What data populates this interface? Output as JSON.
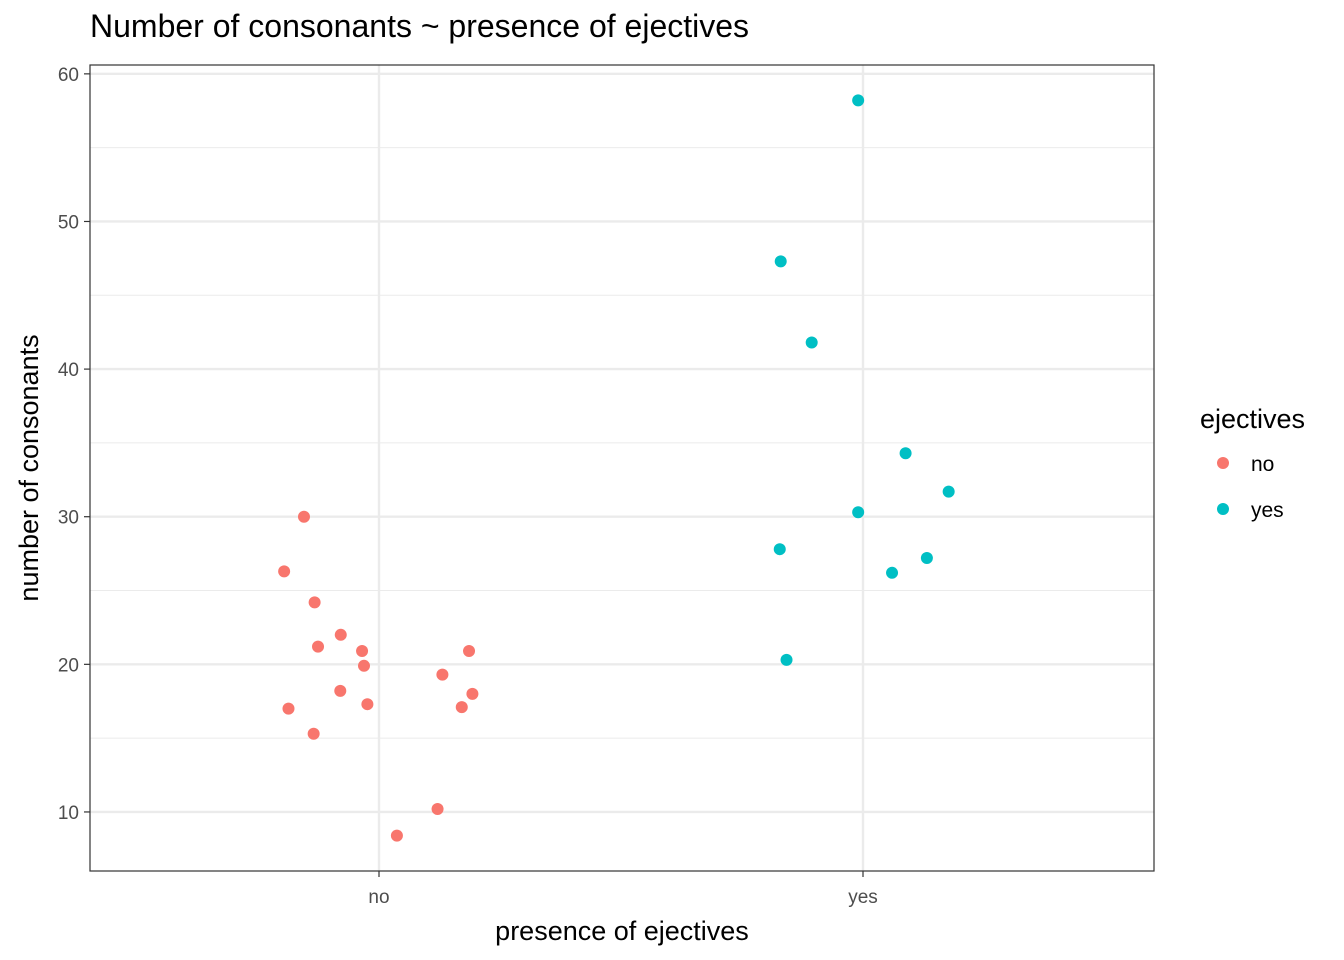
{
  "chart_data": {
    "type": "scatter",
    "title": "Number of consonants ~ presence of ejectives",
    "xlabel": "presence of ejectives",
    "ylabel": "number of consonants",
    "categories": [
      "no",
      "yes"
    ],
    "ylim": [
      6,
      60.6
    ],
    "yticks": [
      10,
      20,
      30,
      40,
      50,
      60
    ],
    "grid": true,
    "jittered": true,
    "legend": {
      "title": "ejectives",
      "position": "right",
      "entries": [
        {
          "label": "no",
          "color": "#F8766D"
        },
        {
          "label": "yes",
          "color": "#00BFC4"
        }
      ]
    },
    "series": [
      {
        "name": "no",
        "color": "#F8766D",
        "points": [
          {
            "x": "no",
            "jitter": -0.155,
            "y": 30
          },
          {
            "x": "no",
            "jitter": -0.196,
            "y": 26.3
          },
          {
            "x": "no",
            "jitter": -0.133,
            "y": 24.2
          },
          {
            "x": "no",
            "jitter": -0.079,
            "y": 22
          },
          {
            "x": "no",
            "jitter": -0.126,
            "y": 21.2
          },
          {
            "x": "no",
            "jitter": -0.035,
            "y": 20.9
          },
          {
            "x": "no",
            "jitter": -0.031,
            "y": 19.9
          },
          {
            "x": "no",
            "jitter": -0.08,
            "y": 18.2
          },
          {
            "x": "no",
            "jitter": -0.024,
            "y": 17.3
          },
          {
            "x": "no",
            "jitter": -0.187,
            "y": 17
          },
          {
            "x": "no",
            "jitter": -0.135,
            "y": 15.3
          },
          {
            "x": "no",
            "jitter": 0.037,
            "y": 8.4
          },
          {
            "x": "no",
            "jitter": 0.121,
            "y": 10.2
          },
          {
            "x": "no",
            "jitter": 0.131,
            "y": 19.3
          },
          {
            "x": "no",
            "jitter": 0.186,
            "y": 20.9
          },
          {
            "x": "no",
            "jitter": 0.193,
            "y": 18
          },
          {
            "x": "no",
            "jitter": 0.171,
            "y": 17.1
          }
        ]
      },
      {
        "name": "yes",
        "color": "#00BFC4",
        "points": [
          {
            "x": "yes",
            "jitter": -0.01,
            "y": 58.2
          },
          {
            "x": "yes",
            "jitter": -0.17,
            "y": 47.3
          },
          {
            "x": "yes",
            "jitter": -0.106,
            "y": 41.8
          },
          {
            "x": "yes",
            "jitter": 0.088,
            "y": 34.3
          },
          {
            "x": "yes",
            "jitter": 0.177,
            "y": 31.7
          },
          {
            "x": "yes",
            "jitter": -0.01,
            "y": 30.3
          },
          {
            "x": "yes",
            "jitter": -0.172,
            "y": 27.8
          },
          {
            "x": "yes",
            "jitter": 0.132,
            "y": 27.2
          },
          {
            "x": "yes",
            "jitter": 0.06,
            "y": 26.2
          },
          {
            "x": "yes",
            "jitter": -0.158,
            "y": 20.3
          }
        ]
      }
    ]
  }
}
